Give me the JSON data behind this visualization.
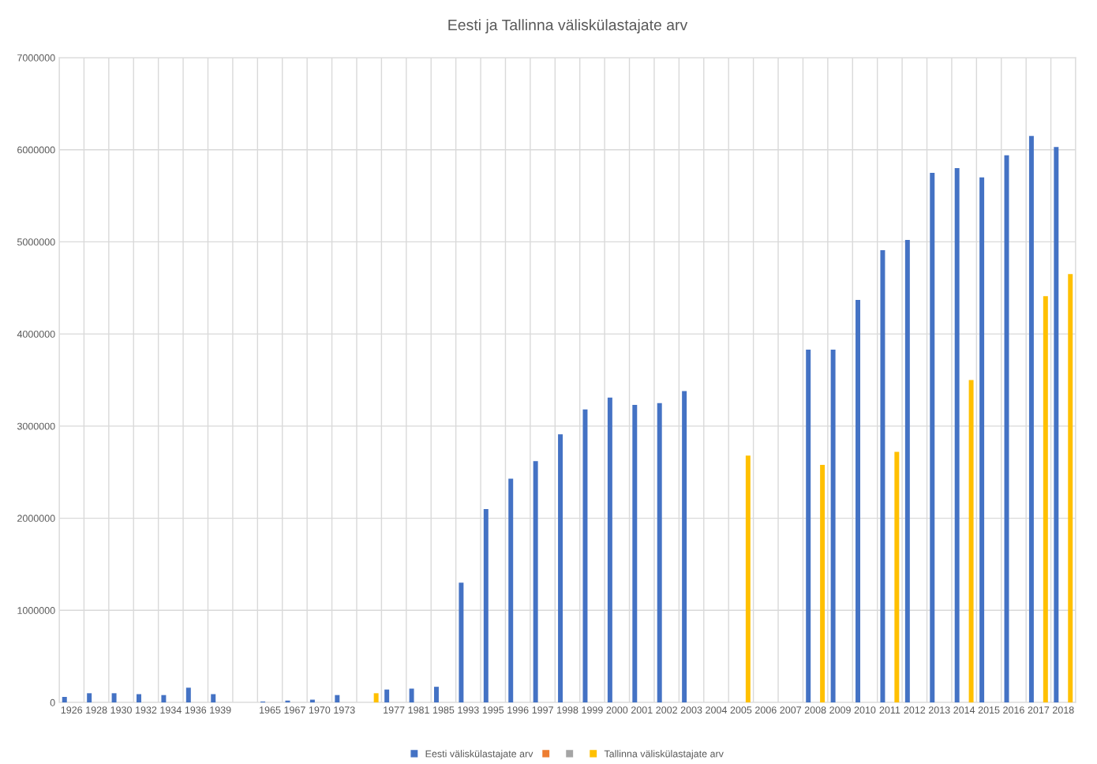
{
  "chart_data": {
    "type": "bar",
    "title": "Eesti ja Tallinna väliskülastajate arv",
    "categories": [
      "1926",
      "1928",
      "1930",
      "1932",
      "1934",
      "1936",
      "1939",
      null,
      "1965",
      "1967",
      "1970",
      "1973",
      null,
      "1977",
      "1981",
      "1985",
      "1993",
      "1995",
      "1996",
      "1997",
      "1998",
      "1999",
      "2000",
      "2001",
      "2002",
      "2003",
      "2004",
      "2005",
      "2006",
      "2007",
      "2008",
      "2009",
      "2010",
      "2011",
      "2012",
      "2013",
      "2014",
      "2015",
      "2016",
      "2017",
      "2018"
    ],
    "series": [
      {
        "name": "Eesti väliskülastajate arv",
        "color": "#4472c4",
        "values": [
          60000,
          100000,
          100000,
          90000,
          80000,
          160000,
          90000,
          null,
          10000,
          20000,
          30000,
          80000,
          null,
          140000,
          150000,
          170000,
          1300000,
          2100000,
          2430000,
          2620000,
          2910000,
          3180000,
          3310000,
          3230000,
          3250000,
          3380000,
          null,
          null,
          null,
          null,
          3830000,
          3830000,
          4370000,
          4910000,
          5020000,
          5750000,
          5800000,
          5700000,
          5940000,
          6150000,
          6030000
        ]
      },
      {
        "color": "#ed7d31",
        "values": [
          null,
          null,
          null,
          null,
          null,
          null,
          null,
          null,
          null,
          null,
          null,
          null,
          null,
          null,
          null,
          null,
          null,
          null,
          null,
          null,
          null,
          null,
          null,
          null,
          null,
          null,
          null,
          null,
          null,
          null,
          null,
          null,
          null,
          null,
          null,
          null,
          null,
          null,
          null,
          null,
          null
        ]
      },
      {
        "color": "#a5a5a5",
        "values": [
          null,
          null,
          null,
          null,
          null,
          null,
          null,
          null,
          null,
          null,
          null,
          null,
          null,
          null,
          null,
          null,
          null,
          null,
          null,
          null,
          null,
          null,
          null,
          null,
          null,
          null,
          null,
          null,
          null,
          null,
          null,
          null,
          null,
          null,
          null,
          null,
          null,
          null,
          null,
          null,
          null
        ]
      },
      {
        "name": "Tallinna väliskülastajate arv",
        "color": "#ffc000",
        "values": [
          null,
          null,
          null,
          null,
          null,
          null,
          null,
          null,
          null,
          null,
          null,
          null,
          100000,
          null,
          null,
          null,
          null,
          null,
          null,
          null,
          null,
          null,
          null,
          null,
          null,
          null,
          null,
          2680000,
          null,
          null,
          2580000,
          null,
          null,
          2720000,
          null,
          null,
          3500000,
          null,
          null,
          4410000,
          4650000
        ]
      }
    ],
    "ylim": [
      0,
      7000000
    ],
    "yticks": [
      0,
      1000000,
      2000000,
      3000000,
      4000000,
      5000000,
      6000000,
      7000000
    ],
    "grid": true,
    "legend": "bottom"
  }
}
